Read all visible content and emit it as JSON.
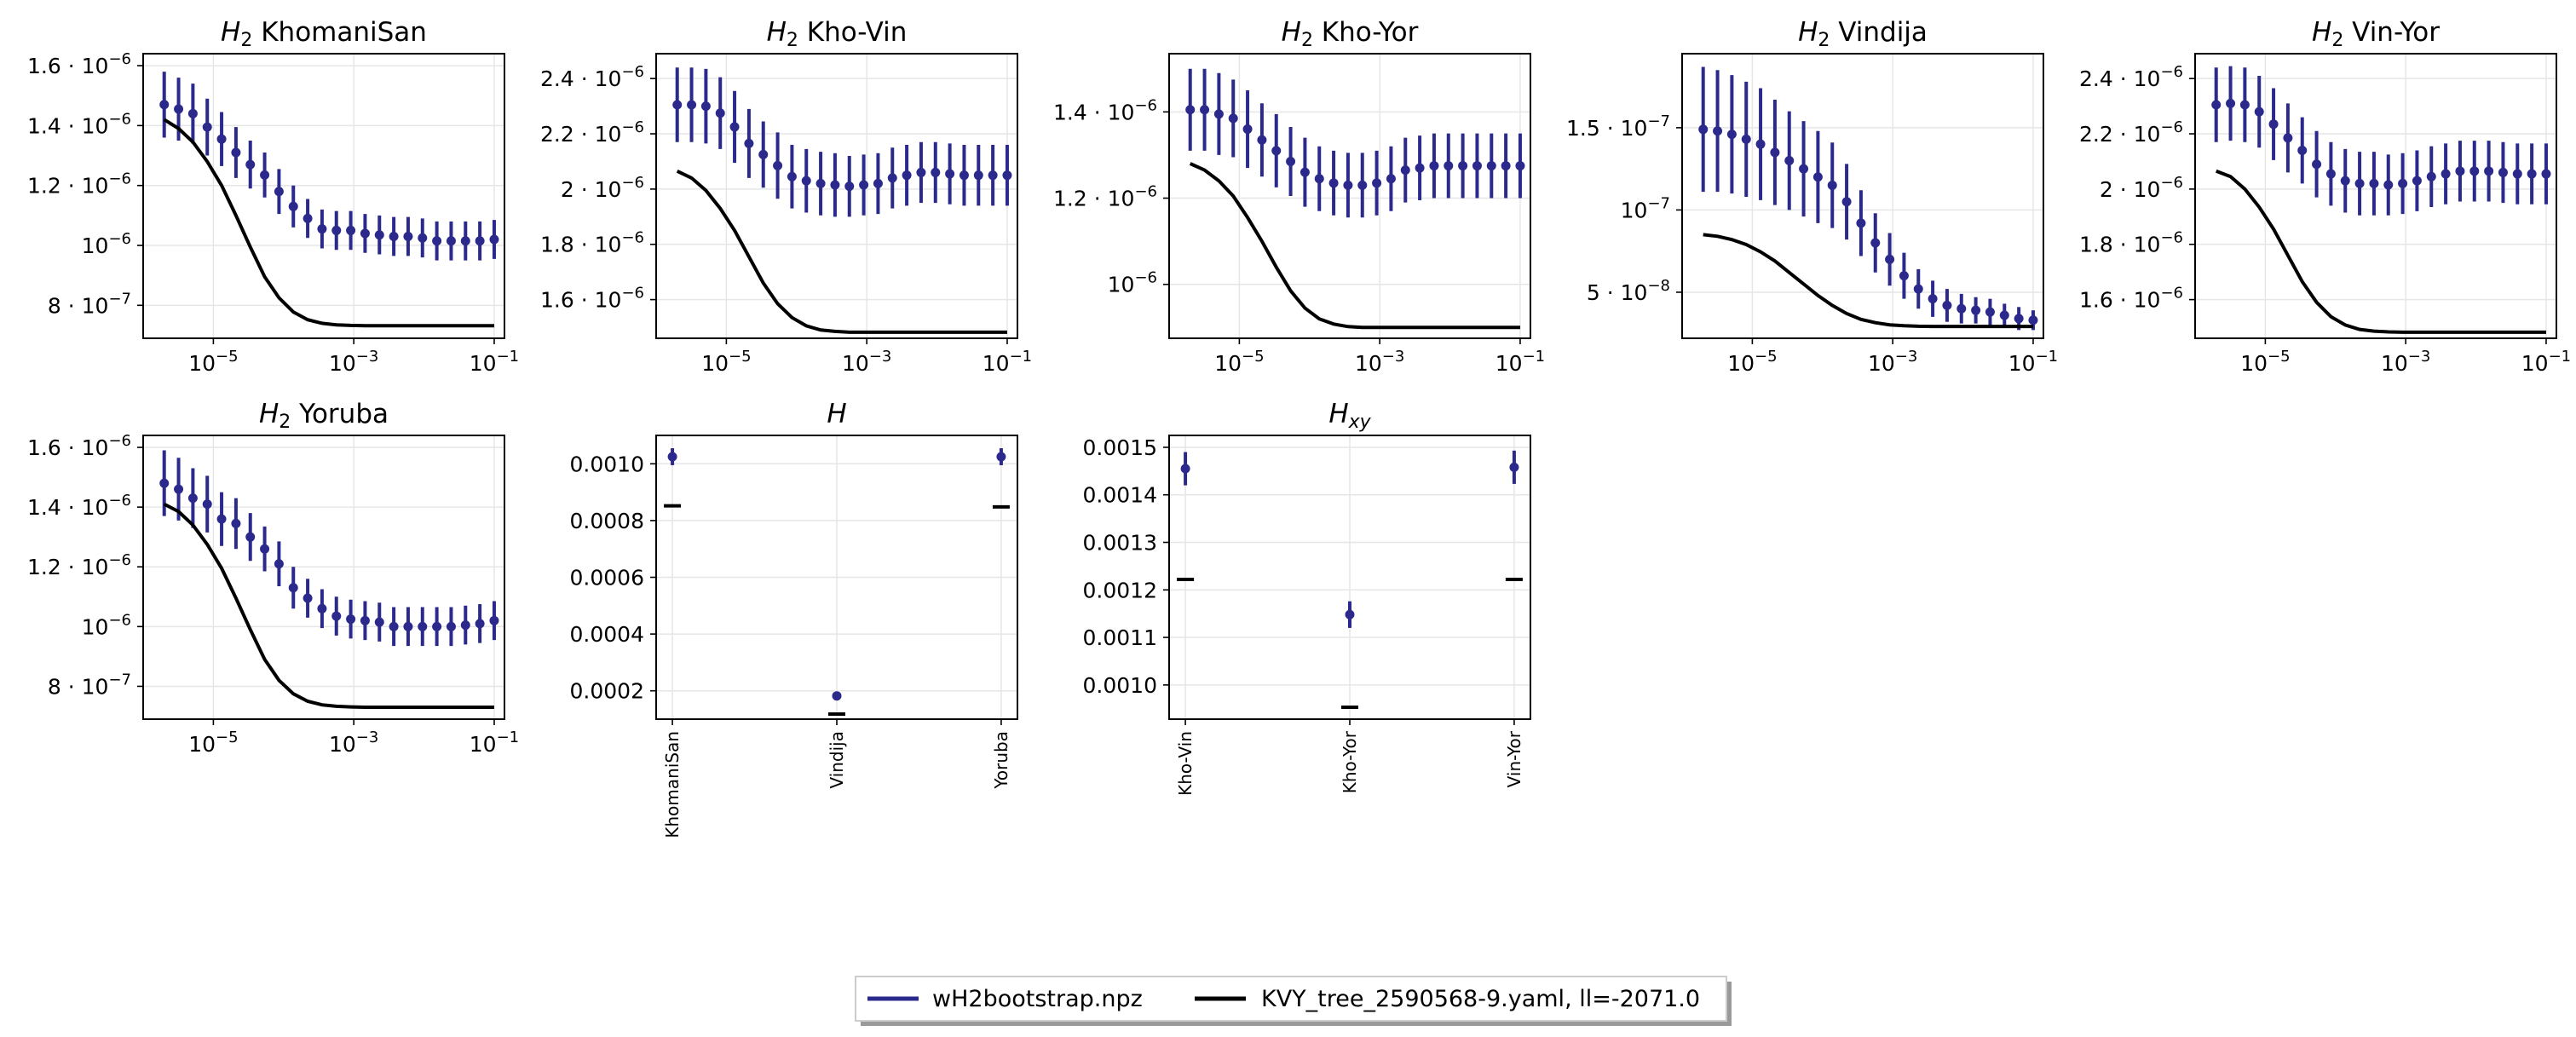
{
  "chart_data": [
    {
      "type": "line",
      "title": "KhomaniSan",
      "title_sym": "H",
      "title_sub": "2",
      "xscale": "log",
      "xlim": [
        1e-06,
        0.14
      ],
      "ylim": [
        6.9e-07,
        1.64e-06
      ],
      "xticks": [
        {
          "value": 1e-05,
          "base": "10",
          "exp": "−5"
        },
        {
          "value": 0.001,
          "base": "10",
          "exp": "−3"
        },
        {
          "value": 0.1,
          "base": "10",
          "exp": "−1"
        }
      ],
      "yticks": [
        {
          "value": 8e-07,
          "mant": "8",
          "exp": "−7"
        },
        {
          "value": 1e-06,
          "mant": "",
          "exp": "−6"
        },
        {
          "value": 1.2e-06,
          "mant": "1.2",
          "exp": "−6"
        },
        {
          "value": 1.4e-06,
          "mant": "1.4",
          "exp": "−6"
        },
        {
          "value": 1.6e-06,
          "mant": "1.6",
          "exp": "−6"
        }
      ],
      "series": [
        {
          "name": "wH2bootstrap.npz",
          "kind": "errorbar",
          "values": [
            1.47e-06,
            1.455e-06,
            1.44e-06,
            1.395e-06,
            1.355e-06,
            1.31e-06,
            1.27e-06,
            1.235e-06,
            1.18e-06,
            1.13e-06,
            1.09e-06,
            1.055e-06,
            1.05e-06,
            1.05e-06,
            1.04e-06,
            1.035e-06,
            1.03e-06,
            1.03e-06,
            1.025e-06,
            1.015e-06,
            1.015e-06,
            1.015e-06,
            1.015e-06,
            1.02e-06
          ],
          "err": [
            1.1e-07,
            1.05e-07,
            1e-07,
            9.5e-08,
            9e-08,
            8.5e-08,
            8e-08,
            7.5e-08,
            7.5e-08,
            7e-08,
            6.5e-08,
            6.5e-08,
            6.5e-08,
            6.5e-08,
            6.5e-08,
            6.5e-08,
            6.5e-08,
            6.5e-08,
            6.5e-08,
            6.5e-08,
            6.5e-08,
            6.5e-08,
            6.5e-08,
            6.5e-08
          ]
        },
        {
          "name": "KVY_tree_2590568-9.yaml, ll=-2071.0",
          "kind": "line",
          "values": [
            1.42e-06,
            1.39e-06,
            1.345e-06,
            1.28e-06,
            1.2e-06,
            1.1e-06,
            9.95e-07,
            8.95e-07,
            8.25e-07,
            7.78e-07,
            7.52e-07,
            7.4e-07,
            7.35e-07,
            7.33e-07,
            7.32e-07,
            7.32e-07,
            7.32e-07,
            7.32e-07,
            7.32e-07,
            7.32e-07,
            7.32e-07,
            7.32e-07,
            7.32e-07,
            7.32e-07
          ]
        }
      ]
    },
    {
      "type": "line",
      "title": "Kho-Vin",
      "title_sym": "H",
      "title_sub": "2",
      "xscale": "log",
      "xlim": [
        1e-06,
        0.14
      ],
      "ylim": [
        1.46e-06,
        2.49e-06
      ],
      "xticks": [
        {
          "value": 1e-05,
          "base": "10",
          "exp": "−5"
        },
        {
          "value": 0.001,
          "base": "10",
          "exp": "−3"
        },
        {
          "value": 0.1,
          "base": "10",
          "exp": "−1"
        }
      ],
      "yticks": [
        {
          "value": 1.6e-06,
          "mant": "1.6",
          "exp": "−6"
        },
        {
          "value": 1.8e-06,
          "mant": "1.8",
          "exp": "−6"
        },
        {
          "value": 2e-06,
          "mant": "2",
          "exp": "−6"
        },
        {
          "value": 2.2e-06,
          "mant": "2.2",
          "exp": "−6"
        },
        {
          "value": 2.4e-06,
          "mant": "2.4",
          "exp": "−6"
        }
      ],
      "series": [
        {
          "name": "wH2bootstrap.npz",
          "kind": "errorbar",
          "values": [
            2.305e-06,
            2.305e-06,
            2.3e-06,
            2.275e-06,
            2.225e-06,
            2.165e-06,
            2.125e-06,
            2.085e-06,
            2.045e-06,
            2.03e-06,
            2.02e-06,
            2.015e-06,
            2.01e-06,
            2.015e-06,
            2.02e-06,
            2.04e-06,
            2.05e-06,
            2.06e-06,
            2.06e-06,
            2.055e-06,
            2.05e-06,
            2.05e-06,
            2.05e-06,
            2.05e-06
          ],
          "err": [
            1.35e-07,
            1.35e-07,
            1.35e-07,
            1.3e-07,
            1.3e-07,
            1.25e-07,
            1.2e-07,
            1.2e-07,
            1.15e-07,
            1.15e-07,
            1.15e-07,
            1.15e-07,
            1.1e-07,
            1.1e-07,
            1.1e-07,
            1.1e-07,
            1.1e-07,
            1.1e-07,
            1.1e-07,
            1.1e-07,
            1.1e-07,
            1.1e-07,
            1.1e-07,
            1.1e-07
          ]
        },
        {
          "name": "KVY_tree_2590568-9.yaml, ll=-2071.0",
          "kind": "line",
          "values": [
            2.065e-06,
            2.04e-06,
            1.995e-06,
            1.93e-06,
            1.85e-06,
            1.755e-06,
            1.66e-06,
            1.585e-06,
            1.535e-06,
            1.505e-06,
            1.49e-06,
            1.485e-06,
            1.482e-06,
            1.482e-06,
            1.482e-06,
            1.482e-06,
            1.482e-06,
            1.482e-06,
            1.482e-06,
            1.482e-06,
            1.482e-06,
            1.482e-06,
            1.482e-06,
            1.482e-06
          ]
        }
      ]
    },
    {
      "type": "line",
      "title": "Kho-Yor",
      "title_sym": "H",
      "title_sub": "2",
      "xscale": "log",
      "xlim": [
        1e-06,
        0.14
      ],
      "ylim": [
        8.75e-07,
        1.535e-06
      ],
      "xticks": [
        {
          "value": 1e-05,
          "base": "10",
          "exp": "−5"
        },
        {
          "value": 0.001,
          "base": "10",
          "exp": "−3"
        },
        {
          "value": 0.1,
          "base": "10",
          "exp": "−1"
        }
      ],
      "yticks": [
        {
          "value": 1e-06,
          "mant": "",
          "exp": "−6"
        },
        {
          "value": 1.2e-06,
          "mant": "1.2",
          "exp": "−6"
        },
        {
          "value": 1.4e-06,
          "mant": "1.4",
          "exp": "−6"
        }
      ],
      "series": [
        {
          "name": "wH2bootstrap.npz",
          "kind": "errorbar",
          "values": [
            1.405e-06,
            1.405e-06,
            1.395e-06,
            1.385e-06,
            1.36e-06,
            1.335e-06,
            1.31e-06,
            1.285e-06,
            1.26e-06,
            1.245e-06,
            1.235e-06,
            1.23e-06,
            1.23e-06,
            1.235e-06,
            1.245e-06,
            1.265e-06,
            1.27e-06,
            1.275e-06,
            1.275e-06,
            1.275e-06,
            1.275e-06,
            1.275e-06,
            1.275e-06,
            1.275e-06
          ],
          "err": [
            9.5e-08,
            9.5e-08,
            9.5e-08,
            9e-08,
            9e-08,
            8.5e-08,
            8.5e-08,
            8e-08,
            8e-08,
            7.5e-08,
            7.5e-08,
            7.5e-08,
            7.5e-08,
            7.5e-08,
            7.5e-08,
            7.5e-08,
            7.5e-08,
            7.5e-08,
            7.5e-08,
            7.5e-08,
            7.5e-08,
            7.5e-08,
            7.5e-08,
            7.5e-08
          ]
        },
        {
          "name": "KVY_tree_2590568-9.yaml, ll=-2071.0",
          "kind": "line",
          "values": [
            1.28e-06,
            1.265e-06,
            1.24e-06,
            1.205e-06,
            1.155e-06,
            1.1e-06,
            1.04e-06,
            9.85e-07,
            9.45e-07,
            9.2e-07,
            9.08e-07,
            9.02e-07,
            9e-07,
            9e-07,
            9e-07,
            9e-07,
            9e-07,
            9e-07,
            9e-07,
            9e-07,
            9e-07,
            9e-07,
            9e-07,
            9e-07
          ]
        }
      ]
    },
    {
      "type": "line",
      "title": "Vindija",
      "title_sym": "H",
      "title_sub": "2",
      "xscale": "log",
      "xlim": [
        1e-06,
        0.14
      ],
      "ylim": [
        2.2e-08,
        1.95e-07
      ],
      "xticks": [
        {
          "value": 1e-05,
          "base": "10",
          "exp": "−5"
        },
        {
          "value": 0.001,
          "base": "10",
          "exp": "−3"
        },
        {
          "value": 0.1,
          "base": "10",
          "exp": "−1"
        }
      ],
      "yticks": [
        {
          "value": 5e-08,
          "mant": "5",
          "exp": "−8"
        },
        {
          "value": 1e-07,
          "mant": "",
          "exp": "−7"
        },
        {
          "value": 1.5e-07,
          "mant": "1.5",
          "exp": "−7"
        }
      ],
      "series": [
        {
          "name": "wH2bootstrap.npz",
          "kind": "errorbar",
          "values": [
            1.49e-07,
            1.48e-07,
            1.46e-07,
            1.43e-07,
            1.4e-07,
            1.35e-07,
            1.3e-07,
            1.25e-07,
            1.2e-07,
            1.15e-07,
            1.05e-07,
            9.2e-08,
            8e-08,
            7e-08,
            6e-08,
            5.2e-08,
            4.6e-08,
            4.2e-08,
            4e-08,
            3.9e-08,
            3.8e-08,
            3.6e-08,
            3.4e-08,
            3.3e-08
          ],
          "err": [
            3.8e-08,
            3.7e-08,
            3.6e-08,
            3.5e-08,
            3.4e-08,
            3.2e-08,
            3e-08,
            2.9e-08,
            2.8e-08,
            2.6e-08,
            2.3e-08,
            2e-08,
            1.8e-08,
            1.6e-08,
            1.4e-08,
            1.2e-08,
            1.1e-08,
            1e-08,
            9e-09,
            8e-09,
            8e-09,
            7e-09,
            7e-09,
            6e-09
          ]
        },
        {
          "name": "KVY_tree_2590568-9.yaml, ll=-2071.0",
          "kind": "line",
          "values": [
            8.5e-08,
            8.4e-08,
            8.2e-08,
            7.9e-08,
            7.45e-08,
            6.9e-08,
            6.2e-08,
            5.5e-08,
            4.8e-08,
            4.2e-08,
            3.7e-08,
            3.35e-08,
            3.15e-08,
            3.02e-08,
            2.96e-08,
            2.93e-08,
            2.92e-08,
            2.92e-08,
            2.92e-08,
            2.92e-08,
            2.92e-08,
            2.92e-08,
            2.92e-08,
            2.92e-08
          ]
        }
      ]
    },
    {
      "type": "line",
      "title": "Vin-Yor",
      "title_sym": "H",
      "title_sub": "2",
      "xscale": "log",
      "xlim": [
        1e-06,
        0.14
      ],
      "ylim": [
        1.46e-06,
        2.49e-06
      ],
      "xticks": [
        {
          "value": 1e-05,
          "base": "10",
          "exp": "−5"
        },
        {
          "value": 0.001,
          "base": "10",
          "exp": "−3"
        },
        {
          "value": 0.1,
          "base": "10",
          "exp": "−1"
        }
      ],
      "yticks": [
        {
          "value": 1.6e-06,
          "mant": "1.6",
          "exp": "−6"
        },
        {
          "value": 1.8e-06,
          "mant": "1.8",
          "exp": "−6"
        },
        {
          "value": 2e-06,
          "mant": "2",
          "exp": "−6"
        },
        {
          "value": 2.2e-06,
          "mant": "2.2",
          "exp": "−6"
        },
        {
          "value": 2.4e-06,
          "mant": "2.4",
          "exp": "−6"
        }
      ],
      "series": [
        {
          "name": "wH2bootstrap.npz",
          "kind": "errorbar",
          "values": [
            2.305e-06,
            2.31e-06,
            2.305e-06,
            2.28e-06,
            2.235e-06,
            2.185e-06,
            2.14e-06,
            2.09e-06,
            2.055e-06,
            2.03e-06,
            2.02e-06,
            2.02e-06,
            2.015e-06,
            2.02e-06,
            2.03e-06,
            2.045e-06,
            2.055e-06,
            2.065e-06,
            2.065e-06,
            2.065e-06,
            2.06e-06,
            2.055e-06,
            2.055e-06,
            2.055e-06
          ],
          "err": [
            1.35e-07,
            1.35e-07,
            1.35e-07,
            1.3e-07,
            1.3e-07,
            1.25e-07,
            1.2e-07,
            1.2e-07,
            1.15e-07,
            1.15e-07,
            1.15e-07,
            1.15e-07,
            1.1e-07,
            1.1e-07,
            1.1e-07,
            1.1e-07,
            1.1e-07,
            1.1e-07,
            1.1e-07,
            1.1e-07,
            1.1e-07,
            1.1e-07,
            1.1e-07,
            1.1e-07
          ]
        },
        {
          "name": "KVY_tree_2590568-9.yaml, ll=-2071.0",
          "kind": "line",
          "values": [
            2.065e-06,
            2.045e-06,
            2e-06,
            1.935e-06,
            1.855e-06,
            1.76e-06,
            1.665e-06,
            1.59e-06,
            1.538e-06,
            1.508e-06,
            1.492e-06,
            1.486e-06,
            1.483e-06,
            1.482e-06,
            1.482e-06,
            1.482e-06,
            1.482e-06,
            1.482e-06,
            1.482e-06,
            1.482e-06,
            1.482e-06,
            1.482e-06,
            1.482e-06,
            1.482e-06
          ]
        }
      ]
    },
    {
      "type": "line",
      "title": "Yoruba",
      "title_sym": "H",
      "title_sub": "2",
      "xscale": "log",
      "xlim": [
        1e-06,
        0.14
      ],
      "ylim": [
        6.9e-07,
        1.64e-06
      ],
      "xticks": [
        {
          "value": 1e-05,
          "base": "10",
          "exp": "−5"
        },
        {
          "value": 0.001,
          "base": "10",
          "exp": "−3"
        },
        {
          "value": 0.1,
          "base": "10",
          "exp": "−1"
        }
      ],
      "yticks": [
        {
          "value": 8e-07,
          "mant": "8",
          "exp": "−7"
        },
        {
          "value": 1e-06,
          "mant": "",
          "exp": "−6"
        },
        {
          "value": 1.2e-06,
          "mant": "1.2",
          "exp": "−6"
        },
        {
          "value": 1.4e-06,
          "mant": "1.4",
          "exp": "−6"
        },
        {
          "value": 1.6e-06,
          "mant": "1.6",
          "exp": "−6"
        }
      ],
      "series": [
        {
          "name": "wH2bootstrap.npz",
          "kind": "errorbar",
          "values": [
            1.48e-06,
            1.46e-06,
            1.43e-06,
            1.41e-06,
            1.36e-06,
            1.345e-06,
            1.3e-06,
            1.26e-06,
            1.21e-06,
            1.13e-06,
            1.095e-06,
            1.06e-06,
            1.035e-06,
            1.025e-06,
            1.02e-06,
            1.015e-06,
            1e-06,
            1e-06,
            1e-06,
            1e-06,
            1e-06,
            1.005e-06,
            1.01e-06,
            1.02e-06
          ],
          "err": [
            1.1e-07,
            1.05e-07,
            1e-07,
            9.5e-08,
            9e-08,
            8.5e-08,
            8e-08,
            7.5e-08,
            7.5e-08,
            7e-08,
            6.5e-08,
            6.5e-08,
            6.5e-08,
            6.5e-08,
            6.5e-08,
            6.5e-08,
            6.5e-08,
            6.5e-08,
            6.5e-08,
            6.5e-08,
            6.5e-08,
            6.5e-08,
            6.5e-08,
            6.5e-08
          ]
        },
        {
          "name": "KVY_tree_2590568-9.yaml, ll=-2071.0",
          "kind": "line",
          "values": [
            1.41e-06,
            1.385e-06,
            1.34e-06,
            1.275e-06,
            1.195e-06,
            1.095e-06,
            9.9e-07,
            8.9e-07,
            8.2e-07,
            7.75e-07,
            7.5e-07,
            7.38e-07,
            7.33e-07,
            7.31e-07,
            7.3e-07,
            7.3e-07,
            7.3e-07,
            7.3e-07,
            7.3e-07,
            7.3e-07,
            7.3e-07,
            7.3e-07,
            7.3e-07,
            7.3e-07
          ]
        }
      ]
    },
    {
      "type": "scatter",
      "title": "",
      "title_sym": "H",
      "title_sub": "",
      "categories": [
        "KhomaniSan",
        "Vindija",
        "Yoruba"
      ],
      "ylim": [
        0.0001,
        0.0011
      ],
      "yticks": [
        {
          "value": 0.0002,
          "label": "0.0002"
        },
        {
          "value": 0.0004,
          "label": "0.0004"
        },
        {
          "value": 0.0006,
          "label": "0.0006"
        },
        {
          "value": 0.0008,
          "label": "0.0008"
        },
        {
          "value": 0.001,
          "label": "0.0010"
        }
      ],
      "series": [
        {
          "name": "wH2bootstrap.npz",
          "kind": "errorbar",
          "values": [
            0.001025,
            0.000182,
            0.001025
          ],
          "err": [
            3e-05,
            8e-06,
            3e-05
          ]
        },
        {
          "name": "KVY_tree_2590568-9.yaml, ll=-2071.0",
          "kind": "dash",
          "values": [
            0.000852,
            0.000118,
            0.000848
          ]
        }
      ]
    },
    {
      "type": "scatter",
      "title": "",
      "title_sym": "H",
      "title_sub": "xy",
      "categories": [
        "Kho-Vin",
        "Kho-Yor",
        "Vin-Yor"
      ],
      "ylim": [
        0.000928,
        0.001525
      ],
      "yticks": [
        {
          "value": 0.001,
          "label": "0.0010"
        },
        {
          "value": 0.0011,
          "label": "0.0011"
        },
        {
          "value": 0.0012,
          "label": "0.0012"
        },
        {
          "value": 0.0013,
          "label": "0.0013"
        },
        {
          "value": 0.0014,
          "label": "0.0014"
        },
        {
          "value": 0.0015,
          "label": "0.0015"
        }
      ],
      "series": [
        {
          "name": "wH2bootstrap.npz",
          "kind": "errorbar",
          "values": [
            0.001455,
            0.001148,
            0.001458
          ],
          "err": [
            3.5e-05,
            2.8e-05,
            3.5e-05
          ]
        },
        {
          "name": "KVY_tree_2590568-9.yaml, ll=-2071.0",
          "kind": "dash",
          "values": [
            0.001222,
            0.000953,
            0.001222
          ]
        }
      ]
    }
  ],
  "legend": {
    "placement": "bottom-center",
    "entries": [
      {
        "label": "wH2bootstrap.npz",
        "color": "#2b2a8c"
      },
      {
        "label": "KVY_tree_2590568-9.yaml, ll=-2071.0",
        "color": "#000000"
      }
    ]
  },
  "colors": {
    "data": "#2b2a8c",
    "model": "#000000",
    "grid": "#e6e6e6"
  }
}
